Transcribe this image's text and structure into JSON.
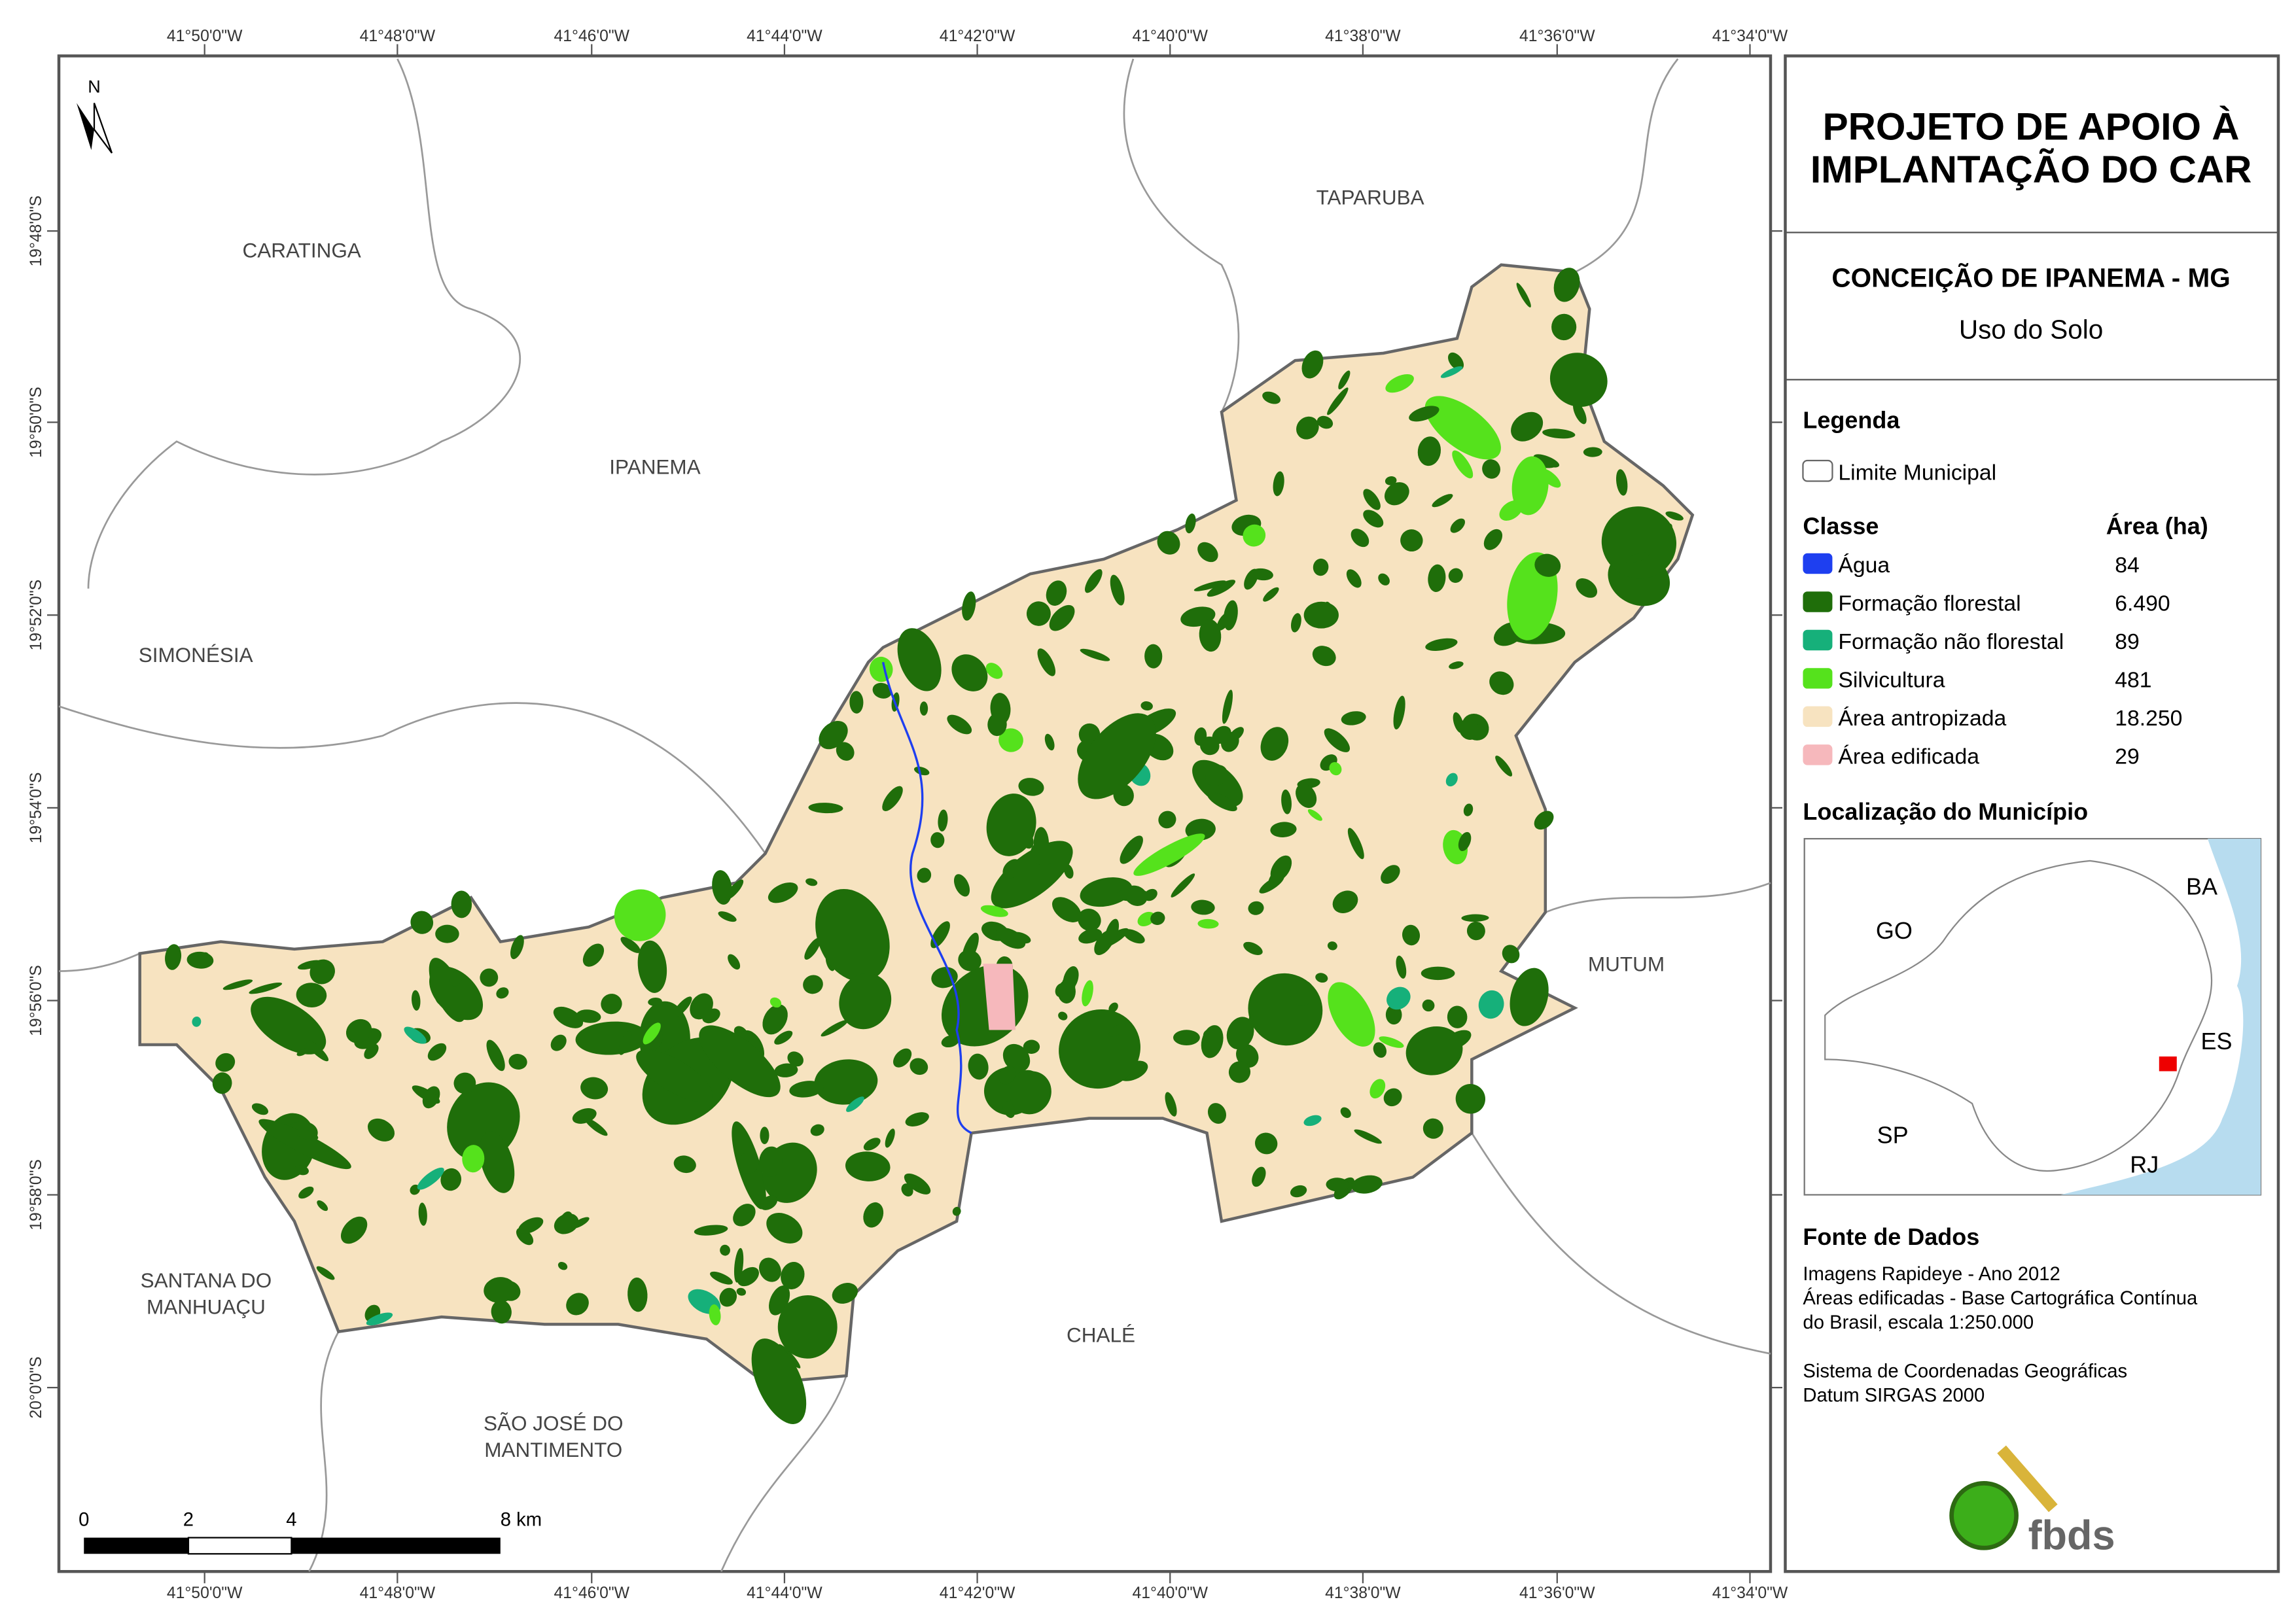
{
  "map": {
    "lon_labels": [
      "41°50'0\"W",
      "41°48'0\"W",
      "41°46'0\"W",
      "41°44'0\"W",
      "41°42'0\"W",
      "41°40'0\"W",
      "41°38'0\"W",
      "41°36'0\"W",
      "41°34'0\"W"
    ],
    "lat_labels": [
      "19°48'0\"S",
      "19°50'0\"S",
      "19°52'0\"S",
      "19°54'0\"S",
      "19°56'0\"S",
      "19°58'0\"S",
      "20°0'0\"S"
    ],
    "places": [
      [
        "CARATINGA"
      ],
      [
        "TAPARUBA"
      ],
      [
        "IPANEMA"
      ],
      [
        "SIMONÉSIA"
      ],
      [
        "MUTUM"
      ],
      [
        "SANTANA DO",
        "MANHUAÇU"
      ],
      [
        "CHALÉ"
      ],
      [
        "SÃO JOSÉ DO",
        "MANTIMENTO"
      ]
    ],
    "north": "N",
    "scale_labels": [
      "0",
      "2",
      "4",
      "8 km"
    ]
  },
  "panel": {
    "title": [
      "PROJETO DE APOIO À",
      "IMPLANTAÇÃO DO CAR"
    ],
    "municipality": "CONCEIÇÃO DE IPANEMA - MG",
    "subtitle": "Uso do Solo",
    "legend": {
      "title": "Legenda",
      "boundary": "Limite Municipal",
      "class_header": "Classe",
      "area_header": "Área (ha)",
      "classes": [
        {
          "name": "Água",
          "color": "#1e3ff0",
          "area": "84"
        },
        {
          "name": "Formação florestal",
          "color": "#1f6e0a",
          "area": "6.490"
        },
        {
          "name": "Formação não florestal",
          "color": "#16b07a",
          "area": "89"
        },
        {
          "name": "Silvicultura",
          "color": "#55e21c",
          "area": "481"
        },
        {
          "name": "Área antropizada",
          "color": "#f7e3c0",
          "area": "18.250"
        },
        {
          "name": "Área edificada",
          "color": "#f6b8bc",
          "area": "29"
        }
      ]
    },
    "location": {
      "title": "Localização do Município",
      "labels": [
        "GO",
        "BA",
        "ES",
        "SP",
        "RJ"
      ]
    },
    "sources": {
      "title": "Fonte de Dados",
      "lines": [
        "Imagens Rapideye - Ano 2012",
        "Áreas edificadas - Base Cartográfica Contínua",
        "do Brasil, escala 1:250.000",
        "",
        "Sistema de Coordenadas Geográficas",
        "Datum SIRGAS 2000"
      ]
    },
    "logo": "fbds"
  }
}
